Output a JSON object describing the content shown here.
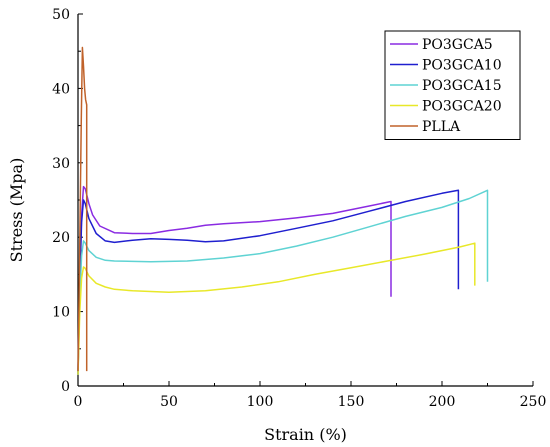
{
  "chart_data": {
    "type": "line",
    "title": "",
    "xlabel": "Strain (%)",
    "ylabel": "Stress (Mpa)",
    "xlim": [
      0,
      250
    ],
    "ylim": [
      0,
      50
    ],
    "xticks": [
      0,
      50,
      100,
      150,
      200,
      250
    ],
    "yticks": [
      0,
      10,
      20,
      30,
      40,
      50
    ],
    "grid": false,
    "legend_position": "top-right",
    "series": [
      {
        "name": "PO3GCA5",
        "color": "#8a2be2",
        "x": [
          0,
          1,
          2,
          3,
          4,
          6,
          8,
          12,
          20,
          30,
          40,
          50,
          60,
          70,
          80,
          100,
          120,
          140,
          160,
          172,
          172
        ],
        "y": [
          1.5,
          15,
          23,
          26.8,
          26.5,
          24.5,
          23,
          21.5,
          20.6,
          20.5,
          20.5,
          20.9,
          21.2,
          21.6,
          21.8,
          22.1,
          22.6,
          23.2,
          24.2,
          24.8,
          12
        ]
      },
      {
        "name": "PO3GCA10",
        "color": "#1f1fcf",
        "x": [
          0,
          1,
          2,
          3,
          4,
          6,
          10,
          15,
          20,
          30,
          40,
          50,
          60,
          70,
          80,
          100,
          120,
          140,
          160,
          180,
          200,
          209,
          209
        ],
        "y": [
          1.5,
          14,
          22,
          25,
          24.5,
          22.5,
          20.5,
          19.5,
          19.3,
          19.6,
          19.8,
          19.7,
          19.6,
          19.4,
          19.5,
          20.2,
          21.2,
          22.2,
          23.5,
          24.8,
          25.9,
          26.3,
          13
        ]
      },
      {
        "name": "PO3GCA15",
        "color": "#5fd3d3",
        "x": [
          0,
          1,
          2,
          3,
          4,
          6,
          10,
          15,
          20,
          40,
          60,
          80,
          100,
          120,
          140,
          160,
          180,
          200,
          215,
          225,
          225
        ],
        "y": [
          1.5,
          12,
          17.5,
          19.5,
          19.2,
          18.2,
          17.3,
          16.9,
          16.8,
          16.7,
          16.8,
          17.2,
          17.8,
          18.8,
          20,
          21.4,
          22.8,
          24,
          25.2,
          26.3,
          14
        ]
      },
      {
        "name": "PO3GCA20",
        "color": "#e8e829",
        "x": [
          0,
          1,
          2,
          3,
          4,
          6,
          10,
          15,
          20,
          30,
          50,
          70,
          90,
          110,
          130,
          150,
          170,
          190,
          210,
          218,
          218
        ],
        "y": [
          1.5,
          10,
          14.5,
          16,
          15.8,
          14.8,
          13.8,
          13.3,
          13,
          12.8,
          12.6,
          12.8,
          13.3,
          14,
          15,
          15.9,
          16.8,
          17.7,
          18.7,
          19.2,
          13.5
        ]
      },
      {
        "name": "PLLA",
        "color": "#c0622a",
        "x": [
          0,
          0.6,
          1.2,
          1.8,
          2.4,
          3,
          3.6,
          4.2,
          4.8,
          4.8
        ],
        "y": [
          2,
          12,
          24,
          36,
          45.5,
          43,
          40,
          38.5,
          37.8,
          2
        ]
      }
    ]
  }
}
